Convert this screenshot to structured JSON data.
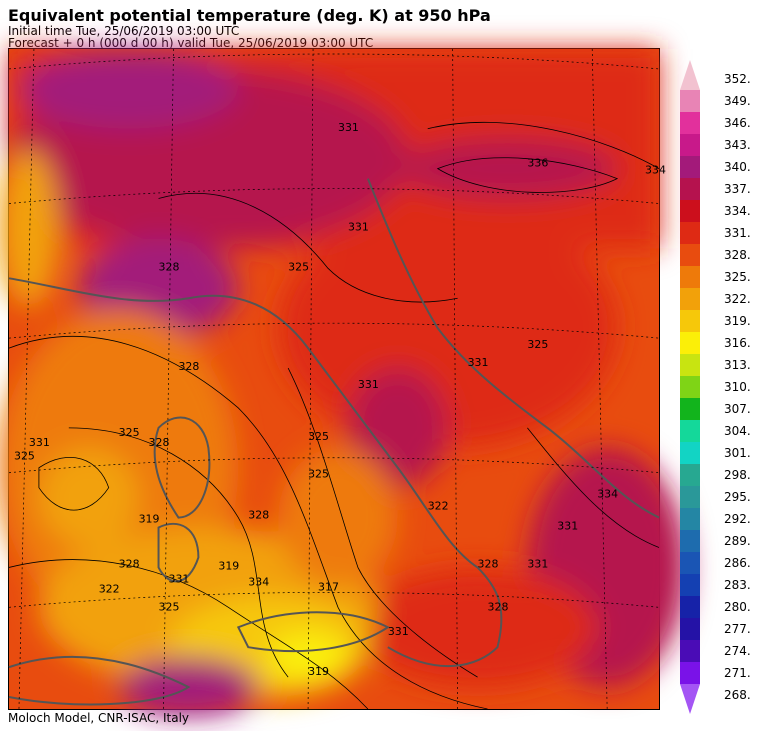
{
  "header": {
    "title": "Equivalent potential temperature (deg. K) at 950 hPa",
    "initial": "Initial time  Tue, 25/06/2019  03:00 UTC",
    "forecast": "Forecast  +   0 h  (000 d 00 h)  valid Tue, 25/06/2019 03:00 UTC"
  },
  "footer": {
    "credit": "Moloch Model, CNR-ISAC, Italy"
  },
  "map": {
    "contour_labels": [
      "331",
      "336",
      "334",
      "331",
      "325",
      "328",
      "325",
      "331",
      "331",
      "328",
      "325",
      "325",
      "328",
      "331",
      "319",
      "325",
      "322",
      "328",
      "334",
      "331",
      "325",
      "328",
      "331",
      "334",
      "319",
      "317",
      "322",
      "325",
      "331",
      "328",
      "331",
      "319",
      "328"
    ]
  },
  "colorbar": {
    "levels": [
      {
        "value": "352.",
        "color": "#f2c2d0"
      },
      {
        "value": "349.",
        "color": "#e884b5"
      },
      {
        "value": "346.",
        "color": "#e2309c"
      },
      {
        "value": "343.",
        "color": "#c8198a"
      },
      {
        "value": "340.",
        "color": "#a31a7a"
      },
      {
        "value": "337.",
        "color": "#b5124e"
      },
      {
        "value": "334.",
        "color": "#cc0f1c"
      },
      {
        "value": "331.",
        "color": "#de2a14"
      },
      {
        "value": "328.",
        "color": "#e84c0f"
      },
      {
        "value": "325.",
        "color": "#ee7a0a"
      },
      {
        "value": "322.",
        "color": "#f2a10a"
      },
      {
        "value": "319.",
        "color": "#f6c80a"
      },
      {
        "value": "316.",
        "color": "#fbef08"
      },
      {
        "value": "313.",
        "color": "#c8e411"
      },
      {
        "value": "310.",
        "color": "#7fd416"
      },
      {
        "value": "307.",
        "color": "#12b41c"
      },
      {
        "value": "304.",
        "color": "#14d89a"
      },
      {
        "value": "301.",
        "color": "#12d4c4"
      },
      {
        "value": "298.",
        "color": "#27a891"
      },
      {
        "value": "295.",
        "color": "#2a9899"
      },
      {
        "value": "292.",
        "color": "#2486a4"
      },
      {
        "value": "289.",
        "color": "#1e6cae"
      },
      {
        "value": "286.",
        "color": "#1a55b4"
      },
      {
        "value": "283.",
        "color": "#1440b2"
      },
      {
        "value": "280.",
        "color": "#1622a8"
      },
      {
        "value": "277.",
        "color": "#2412a6"
      },
      {
        "value": "274.",
        "color": "#4a0cb6"
      },
      {
        "value": "271.",
        "color": "#7a12e8"
      },
      {
        "value": "268.",
        "color": "#a455f4"
      }
    ]
  }
}
